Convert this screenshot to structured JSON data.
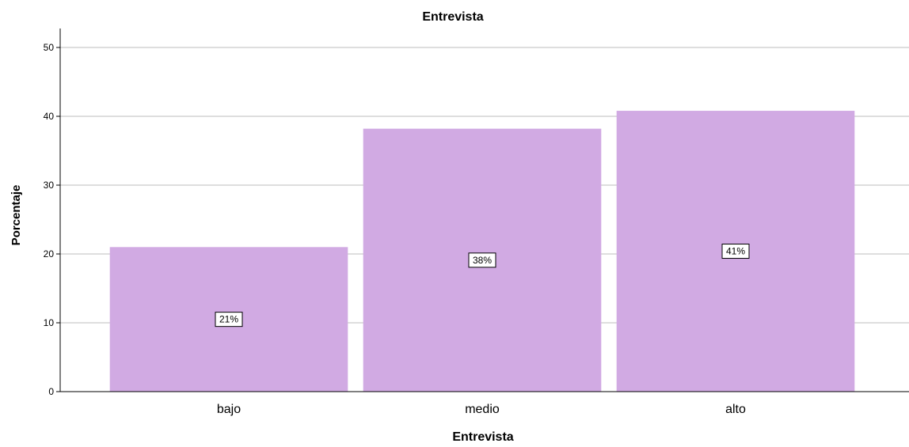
{
  "chart_data": {
    "type": "bar",
    "title": "Entrevista",
    "xlabel": "Entrevista",
    "ylabel": "Porcentaje",
    "categories": [
      "bajo",
      "medio",
      "alto"
    ],
    "values": [
      21,
      38.2,
      40.8
    ],
    "data_labels": [
      "21%",
      "38%",
      "41%"
    ],
    "ylim": [
      0,
      50
    ],
    "yticks": [
      0,
      10,
      20,
      30,
      40,
      50
    ],
    "grid": true,
    "bar_color": "#d1aae3"
  }
}
